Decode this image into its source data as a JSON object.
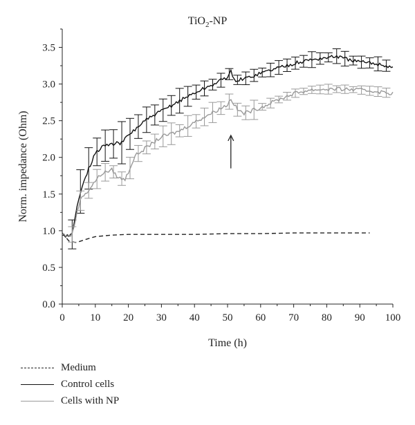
{
  "chart_data": {
    "type": "line",
    "title_main": "TiO",
    "title_sub": "2",
    "title_suffix": "-NP",
    "xlabel": "Time (h)",
    "ylabel": "Norm. impedance (Ohm)",
    "xlim": [
      0,
      100
    ],
    "ylim": [
      0.0,
      3.75
    ],
    "xticks": [
      0,
      10,
      20,
      30,
      40,
      50,
      60,
      70,
      80,
      90,
      100
    ],
    "yticks": [
      "0.0",
      "0.5",
      "1.0",
      "1.5",
      "2.0",
      "2.5",
      "3.0",
      "3.5"
    ],
    "grid": false,
    "legend_position": "bottom-left",
    "annotation": {
      "type": "arrow",
      "x": 51,
      "y_from": 1.85,
      "y_to": 2.3
    },
    "series": [
      {
        "name": "Medium",
        "style": "dashed",
        "color": "#222222",
        "x": [
          0,
          2,
          3,
          4,
          5,
          7,
          10,
          15,
          20,
          30,
          40,
          50,
          60,
          70,
          80,
          93
        ],
        "y": [
          0.97,
          0.86,
          0.85,
          0.84,
          0.85,
          0.88,
          0.92,
          0.94,
          0.95,
          0.95,
          0.95,
          0.96,
          0.96,
          0.97,
          0.97,
          0.97
        ]
      },
      {
        "name": "Control cells",
        "style": "solid",
        "color": "#111111",
        "x": [
          0,
          2,
          3,
          4,
          5,
          6,
          8,
          10,
          12,
          15,
          18,
          20,
          25,
          30,
          35,
          40,
          45,
          50,
          51,
          52,
          55,
          60,
          65,
          70,
          75,
          80,
          83,
          85,
          90,
          95,
          100
        ],
        "y": [
          0.95,
          0.92,
          0.95,
          1.2,
          1.45,
          1.62,
          1.85,
          2.05,
          2.15,
          2.18,
          2.2,
          2.3,
          2.5,
          2.63,
          2.76,
          2.88,
          2.98,
          3.1,
          3.17,
          3.05,
          3.07,
          3.15,
          3.22,
          3.28,
          3.33,
          3.36,
          3.38,
          3.35,
          3.3,
          3.28,
          3.23
        ]
      },
      {
        "name": "Cells with NP",
        "style": "solid",
        "color": "#999999",
        "x": [
          0,
          2,
          3,
          4,
          5,
          6,
          8,
          10,
          12,
          15,
          17,
          19,
          20,
          22,
          25,
          30,
          35,
          40,
          45,
          50,
          51,
          53,
          55,
          60,
          65,
          70,
          75,
          80,
          85,
          90,
          95,
          100
        ],
        "y": [
          0.95,
          0.93,
          0.95,
          1.15,
          1.35,
          1.47,
          1.55,
          1.68,
          1.78,
          1.83,
          1.72,
          1.7,
          1.8,
          2.02,
          2.12,
          2.28,
          2.35,
          2.48,
          2.6,
          2.72,
          2.8,
          2.65,
          2.6,
          2.68,
          2.78,
          2.87,
          2.92,
          2.93,
          2.93,
          2.92,
          2.9,
          2.87
        ]
      }
    ]
  }
}
